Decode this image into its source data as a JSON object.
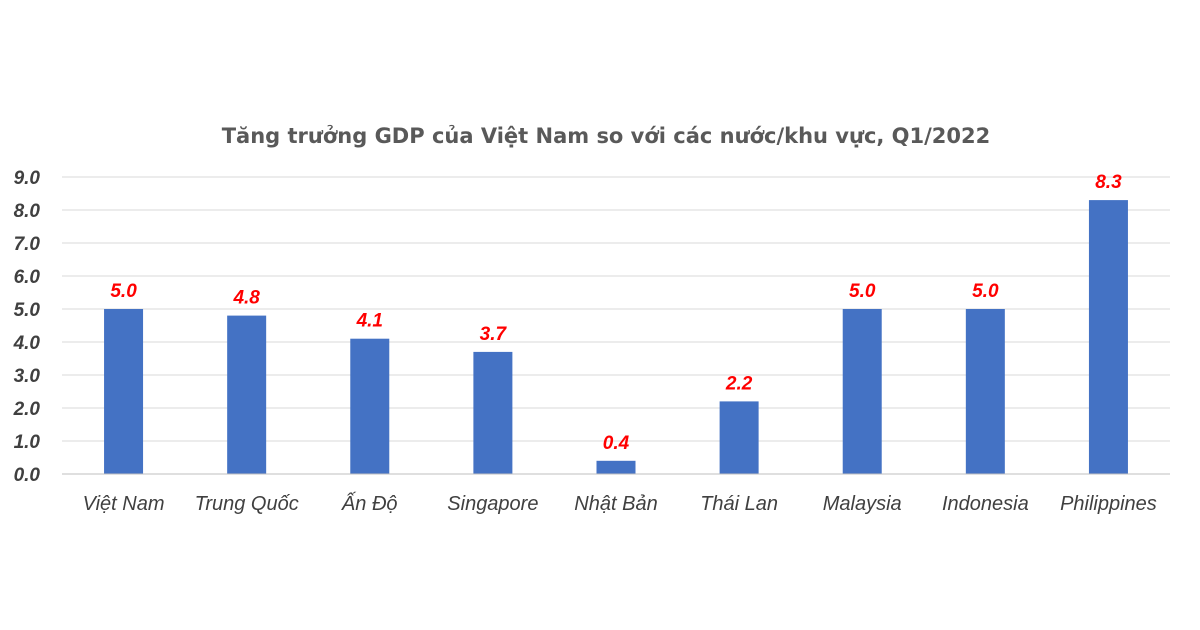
{
  "chart_data": {
    "type": "bar",
    "title": "Tăng trưởng GDP của Việt Nam so với các nước/khu vực, Q1/2022",
    "xlabel": "",
    "ylabel": "",
    "categories": [
      "Việt Nam",
      "Trung Quốc",
      "Ấn Độ",
      "Singapore",
      "Nhật Bản",
      "Thái Lan",
      "Malaysia",
      "Indonesia",
      "Philippines"
    ],
    "values": [
      5.0,
      4.8,
      4.1,
      3.7,
      0.4,
      2.2,
      5.0,
      5.0,
      8.3
    ],
    "data_labels": [
      "5.0",
      "4.8",
      "4.1",
      "3.7",
      "0.4",
      "2.2",
      "5.0",
      "5.0",
      "8.3"
    ],
    "y_ticks": [
      "0.0",
      "1.0",
      "2.0",
      "3.0",
      "4.0",
      "5.0",
      "6.0",
      "7.0",
      "8.0",
      "9.0"
    ],
    "ylim": [
      0,
      9
    ],
    "grid": true,
    "legend": "none",
    "bar_color": "#4472c4",
    "label_color": "#ff0000",
    "title_color": "#595959",
    "text_color": "#404040",
    "grid_color": "#d9d9d9"
  }
}
